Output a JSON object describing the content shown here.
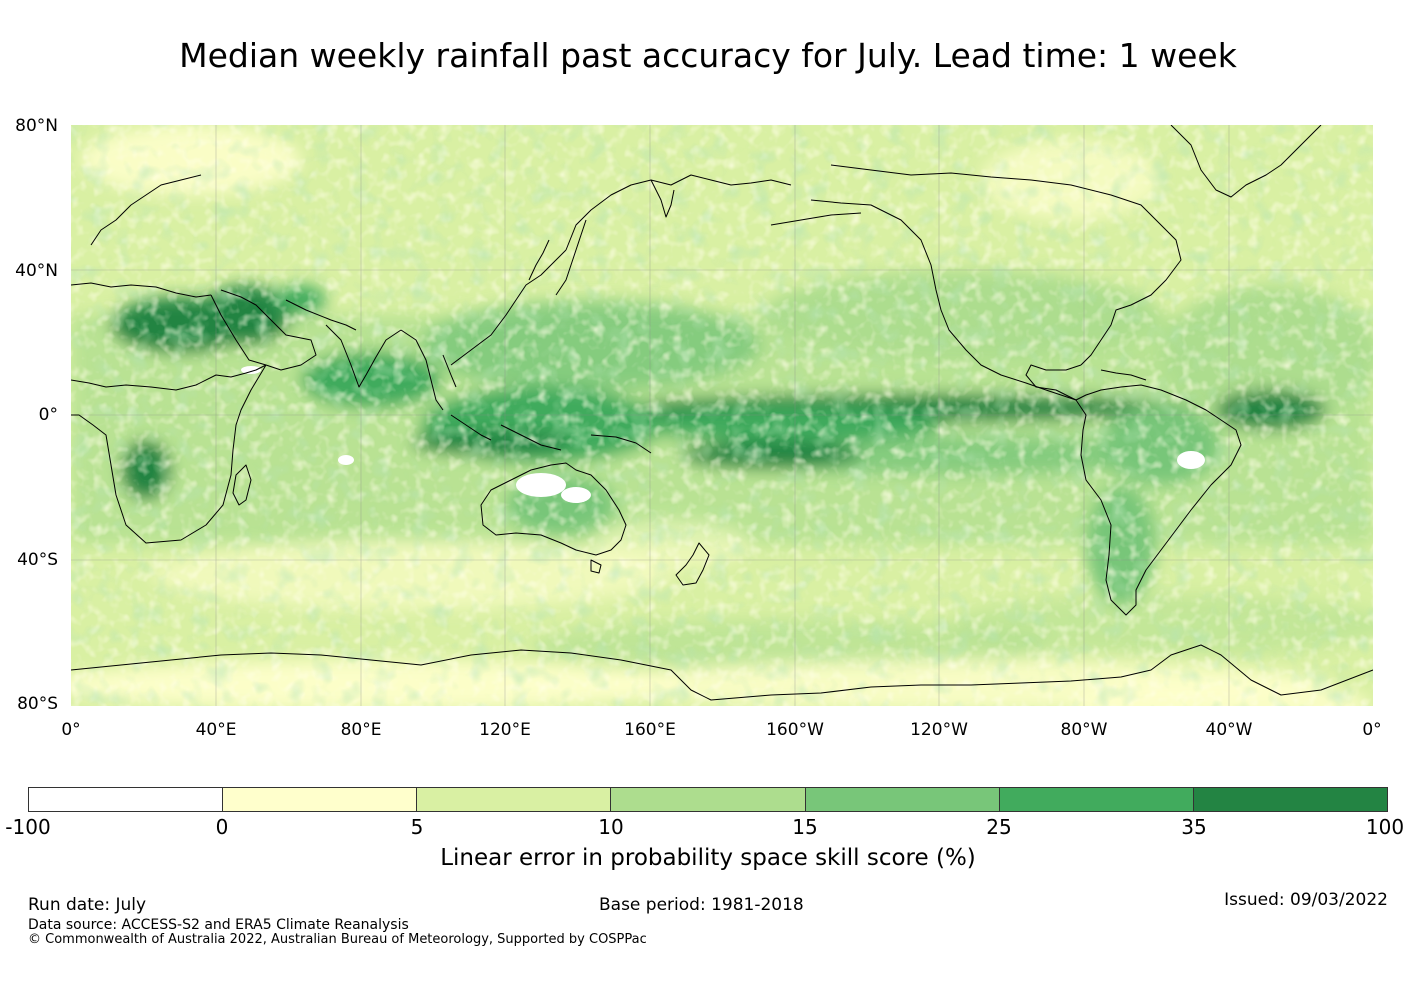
{
  "title": "Median weekly rainfall past accuracy for July. Lead time: 1 week",
  "map": {
    "lat_labels": [
      "80°N",
      "40°N",
      "0°",
      "40°S",
      "80°S"
    ],
    "lon_labels": [
      "0°",
      "40°E",
      "80°E",
      "120°E",
      "160°E",
      "160°W",
      "120°W",
      "80°W",
      "40°W",
      "0°"
    ]
  },
  "colorbar": {
    "ticks": [
      "-100",
      "0",
      "5",
      "10",
      "15",
      "25",
      "35",
      "100"
    ],
    "colors": [
      "#ffffff",
      "#ffffcc",
      "#d9f0a3",
      "#addd8e",
      "#78c679",
      "#41ab5d",
      "#238443"
    ],
    "label": "Linear error in probability space skill score (%)"
  },
  "footer": {
    "run_date": "Run date: July",
    "base_period": "Base period: 1981-2018",
    "issued": "Issued: 09/03/2022",
    "data_source": "Data source: ACCESS-S2 and ERA5 Climate Reanalysis",
    "copyright": "© Commonwealth of Australia 2022, Australian Bureau of Meteorology, Supported by COSPPac"
  }
}
